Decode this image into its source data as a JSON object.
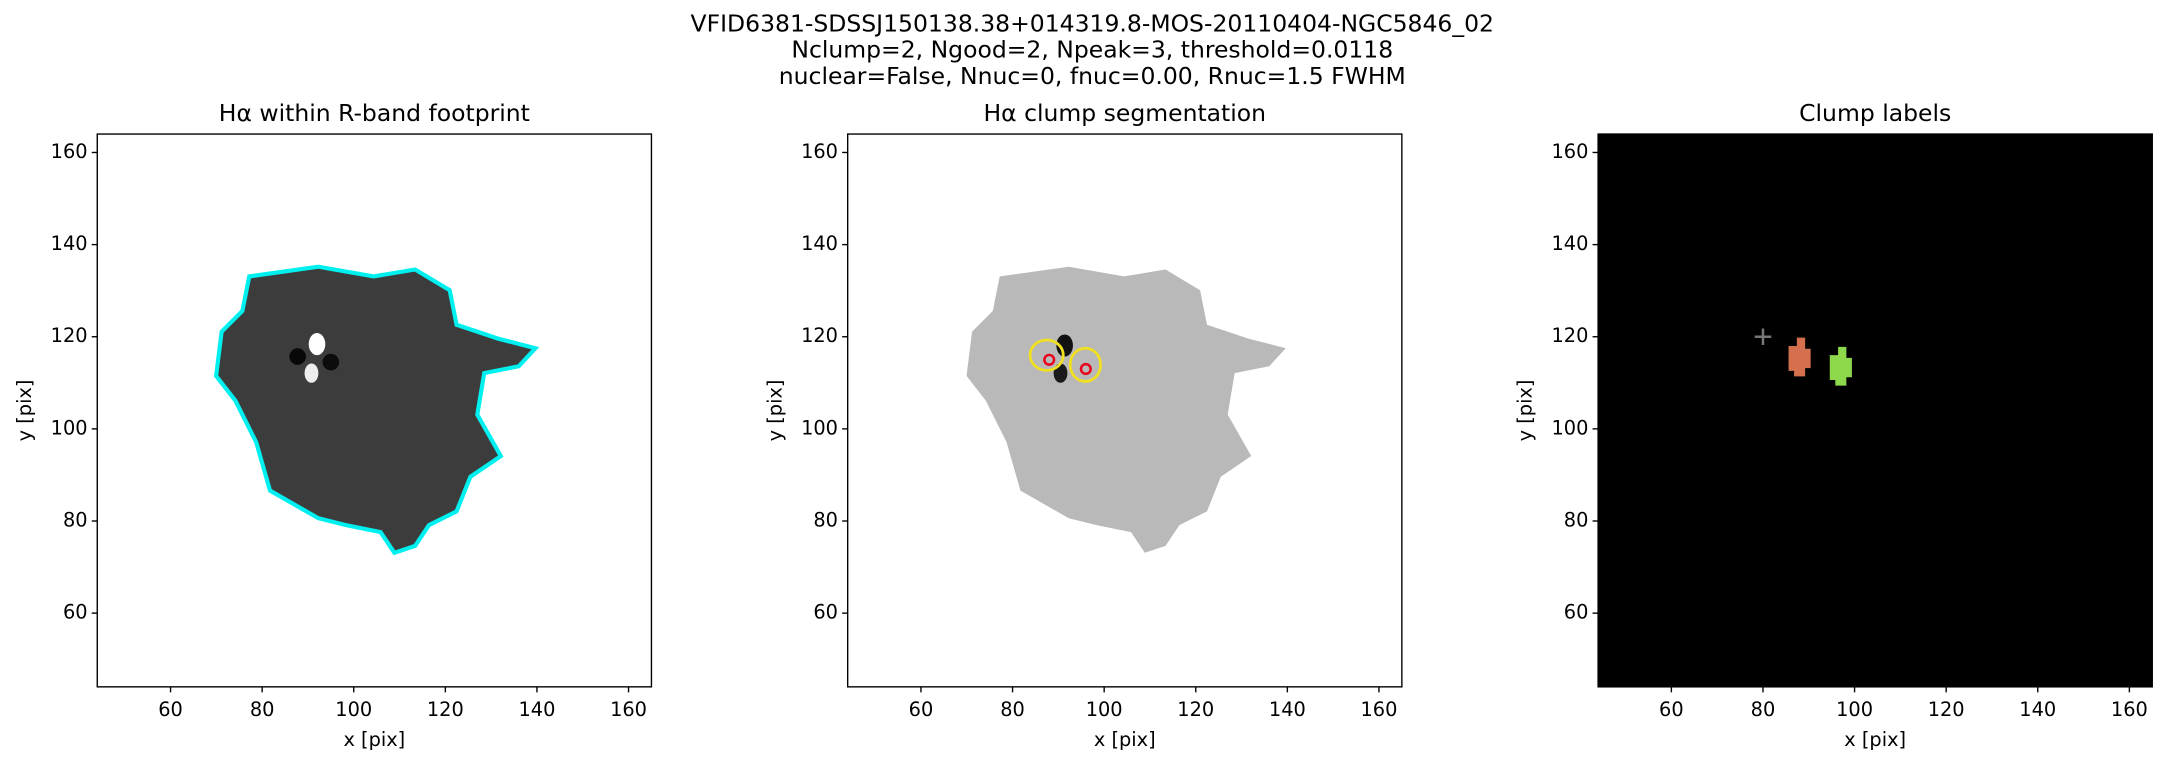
{
  "suptitle": [
    "VFID6381-SDSSJ150138.38+014319.8-MOS-20110404-NGC5846_02",
    "Nclump=2, Ngood=2, Npeak=3, threshold=0.0118",
    "nuclear=False, Nnuc=0, fnuc=0.00, Rnuc=1.5 FWHM"
  ],
  "chart_data": [
    {
      "type": "image",
      "title": "Hα within R-band footprint",
      "xlabel": "x [pix]",
      "ylabel": "y [pix]",
      "background": "#ffffff",
      "xlim": [
        44,
        165
      ],
      "ylim": [
        44,
        164
      ],
      "xticks": [
        60,
        80,
        100,
        120,
        140,
        160
      ],
      "yticks": [
        60,
        80,
        100,
        120,
        140,
        160
      ]
    },
    {
      "type": "image",
      "title": "Hα clump segmentation",
      "xlabel": "x [pix]",
      "ylabel": "y [pix]",
      "background": "#ffffff",
      "xlim": [
        44,
        165
      ],
      "ylim": [
        44,
        164
      ],
      "xticks": [
        60,
        80,
        100,
        120,
        140,
        160
      ],
      "yticks": [
        60,
        80,
        100,
        120,
        140,
        160
      ],
      "peaks": {
        "x": [
          88,
          96
        ],
        "y": [
          115,
          113
        ],
        "color": "#e8001c"
      }
    },
    {
      "type": "image",
      "title": "Clump labels",
      "xlabel": "x [pix]",
      "ylabel": "y [pix]",
      "background": "#000000",
      "xlim": [
        44,
        165
      ],
      "ylim": [
        44,
        164
      ],
      "xticks": [
        60,
        80,
        100,
        120,
        140,
        160
      ],
      "yticks": [
        60,
        80,
        100,
        120,
        140,
        160
      ],
      "center": {
        "x": 80,
        "y": 120,
        "color": "#777777"
      },
      "clumps": {
        "x": [
          88,
          97
        ],
        "y": [
          115,
          113
        ],
        "colors": [
          "#d4704e",
          "#8ed84c"
        ]
      }
    }
  ]
}
